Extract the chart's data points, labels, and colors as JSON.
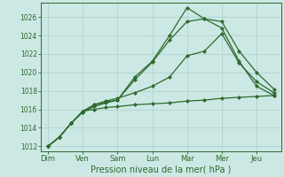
{
  "background_color": "#cce8e4",
  "grid_color": "#aacfcc",
  "line_color": "#2d6a2d",
  "title": "Pression niveau de la mer( hPa )",
  "x_labels": [
    "Dim",
    "Ven",
    "Sam",
    "Lun",
    "Mar",
    "Mer",
    "Jeu"
  ],
  "x_ticks": [
    0,
    1,
    2,
    3,
    4,
    5,
    6
  ],
  "ylim": [
    1011.5,
    1027.5
  ],
  "yticks": [
    1012,
    1014,
    1016,
    1018,
    1020,
    1022,
    1024,
    1026
  ],
  "series": [
    {
      "x": [
        0,
        0.33,
        0.67,
        1.0,
        1.33,
        1.67,
        2.0,
        2.5,
        3.0,
        3.5,
        4.0,
        4.5,
        5.0,
        5.5,
        6.0,
        6.5
      ],
      "y": [
        1012,
        1013,
        1014.5,
        1015.7,
        1016.5,
        1016.8,
        1017.0,
        1019.5,
        1021.2,
        1024.0,
        1027.0,
        1025.8,
        1024.8,
        1021.2,
        1018.5,
        1017.5
      ]
    },
    {
      "x": [
        0,
        0.33,
        0.67,
        1.0,
        1.33,
        1.67,
        2.0,
        2.5,
        3.0,
        3.5,
        4.0,
        4.5,
        5.0,
        5.5,
        6.0,
        6.5
      ],
      "y": [
        1012,
        1013,
        1014.5,
        1015.7,
        1016.3,
        1016.7,
        1017.0,
        1019.2,
        1021.1,
        1023.5,
        1025.5,
        1025.8,
        1025.5,
        1022.3,
        1020.0,
        1018.2
      ]
    },
    {
      "x": [
        0,
        0.33,
        0.67,
        1.0,
        1.33,
        1.67,
        2.0,
        2.5,
        3.0,
        3.5,
        4.0,
        4.5,
        5.0,
        5.5,
        6.0,
        6.5
      ],
      "y": [
        1012,
        1013,
        1014.5,
        1015.8,
        1016.5,
        1016.9,
        1017.2,
        1017.8,
        1018.5,
        1019.5,
        1021.8,
        1022.3,
        1024.2,
        1021.0,
        1019.0,
        1017.8
      ]
    },
    {
      "x": [
        0,
        0.33,
        0.67,
        1.0,
        1.33,
        1.67,
        2.0,
        2.5,
        3.0,
        3.5,
        4.0,
        4.5,
        5.0,
        5.5,
        6.0,
        6.5
      ],
      "y": [
        1012,
        1013,
        1014.5,
        1015.8,
        1016.0,
        1016.2,
        1016.3,
        1016.5,
        1016.6,
        1016.7,
        1016.9,
        1017.0,
        1017.2,
        1017.3,
        1017.4,
        1017.5
      ]
    }
  ]
}
